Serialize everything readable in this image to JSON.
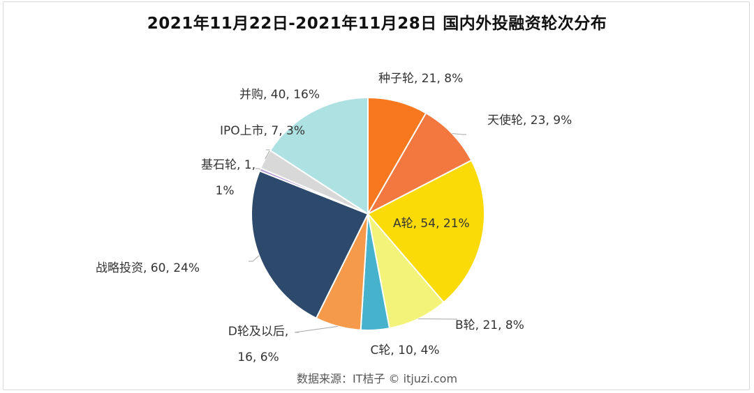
{
  "chart_data": {
    "type": "pie",
    "title": "2021年11月22日-2021年11月28日 国内外投融资轮次分布",
    "source": "数据来源：IT桔子 © itjuzi.com",
    "slices": [
      {
        "name": "种子轮",
        "value": 21,
        "percent": "8%",
        "label": "种子轮, 21, 8%",
        "color": "#f7781e"
      },
      {
        "name": "天使轮",
        "value": 23,
        "percent": "9%",
        "label": "天使轮, 23, 9%",
        "color": "#f27840"
      },
      {
        "name": "A轮",
        "value": 54,
        "percent": "21%",
        "label": "A轮, 54, 21%",
        "color": "#fbdb07"
      },
      {
        "name": "B轮",
        "value": 21,
        "percent": "8%",
        "label": "B轮, 21, 8%",
        "color": "#f3f37a"
      },
      {
        "name": "C轮",
        "value": 10,
        "percent": "4%",
        "label": "C轮, 10, 4%",
        "color": "#47b2cb"
      },
      {
        "name": "D轮及以后",
        "value": 16,
        "percent": "6%",
        "label": "D轮及以后, 16, 6%",
        "color": "#f59a4a"
      },
      {
        "name": "战略投资",
        "value": 60,
        "percent": "24%",
        "label": "战略投资, 60, 24%",
        "color": "#2d4a6c"
      },
      {
        "name": "基石轮",
        "value": 1,
        "percent": "1%",
        "label": "基石轮, 1, 1%",
        "color": "#b39ad8"
      },
      {
        "name": "IPO上市",
        "value": 7,
        "percent": "3%",
        "label": "IPO上市, 7, 3%",
        "color": "#d8d8d8"
      },
      {
        "name": "并购",
        "value": 40,
        "percent": "16%",
        "label": "并购, 40, 16%",
        "color": "#aee2e2"
      }
    ],
    "legend": "none"
  }
}
